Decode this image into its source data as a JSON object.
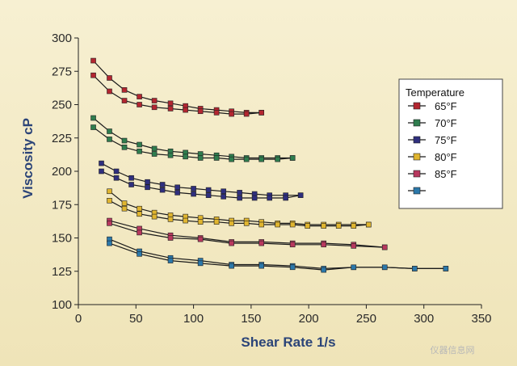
{
  "chart_data": {
    "type": "line",
    "title": "",
    "xlabel": "Shear Rate 1/s",
    "ylabel": "Viscosity cP",
    "xlim": [
      0,
      350
    ],
    "ylim": [
      100,
      300
    ],
    "xticks": [
      "0",
      "50",
      "100",
      "150",
      "200",
      "250",
      "300",
      "350"
    ],
    "yticks": [
      "100",
      "125",
      "150",
      "175",
      "200",
      "225",
      "250",
      "275",
      "300"
    ],
    "grid": false,
    "legend": {
      "title": "Temperature",
      "placement": "right",
      "entries": [
        {
          "label": "65°F",
          "color": "#b32630"
        },
        {
          "label": "70°F",
          "color": "#2f7d4e"
        },
        {
          "label": "75°F",
          "color": "#2f2f7e"
        },
        {
          "label": "80°F",
          "color": "#e0b52f"
        },
        {
          "label": "85°F",
          "color": "#b8385e"
        },
        {
          "label": "",
          "color": "#2b78aa"
        }
      ]
    },
    "series": [
      {
        "color": "#b32630",
        "curves": [
          [
            [
              13,
              283
            ],
            [
              27,
              270
            ],
            [
              40,
              261
            ],
            [
              53,
              256
            ],
            [
              66,
              253
            ],
            [
              80,
              251
            ],
            [
              93,
              249
            ],
            [
              106,
              247
            ],
            [
              120,
              246
            ],
            [
              133,
              245
            ],
            [
              146,
              244
            ],
            [
              159,
              244
            ]
          ],
          [
            [
              13,
              272
            ],
            [
              27,
              260
            ],
            [
              40,
              253
            ],
            [
              53,
              250
            ],
            [
              66,
              248
            ],
            [
              80,
              247
            ],
            [
              93,
              246
            ],
            [
              106,
              245
            ],
            [
              120,
              244
            ],
            [
              133,
              243
            ],
            [
              146,
              243
            ],
            [
              159,
              244
            ]
          ]
        ]
      },
      {
        "color": "#2f7d4e",
        "curves": [
          [
            [
              13,
              240
            ],
            [
              27,
              230
            ],
            [
              40,
              223
            ],
            [
              53,
              220
            ],
            [
              66,
              217
            ],
            [
              80,
              215
            ],
            [
              93,
              214
            ],
            [
              106,
              213
            ],
            [
              120,
              212
            ],
            [
              133,
              211
            ],
            [
              146,
              210
            ],
            [
              159,
              210
            ],
            [
              173,
              210
            ],
            [
              186,
              210
            ]
          ],
          [
            [
              13,
              233
            ],
            [
              27,
              224
            ],
            [
              40,
              218
            ],
            [
              53,
              215
            ],
            [
              66,
              213
            ],
            [
              80,
              212
            ],
            [
              93,
              211
            ],
            [
              106,
              210
            ],
            [
              120,
              210
            ],
            [
              133,
              209
            ],
            [
              146,
              209
            ],
            [
              159,
              209
            ],
            [
              173,
              209
            ],
            [
              186,
              210
            ]
          ]
        ]
      },
      {
        "color": "#2f2f7e",
        "curves": [
          [
            [
              20,
              206
            ],
            [
              33,
              200
            ],
            [
              46,
              195
            ],
            [
              60,
              192
            ],
            [
              73,
              190
            ],
            [
              86,
              188
            ],
            [
              100,
              187
            ],
            [
              113,
              186
            ],
            [
              126,
              185
            ],
            [
              140,
              184
            ],
            [
              153,
              183
            ],
            [
              166,
              182
            ],
            [
              180,
              182
            ],
            [
              193,
              182
            ]
          ],
          [
            [
              20,
              200
            ],
            [
              33,
              195
            ],
            [
              46,
              190
            ],
            [
              60,
              188
            ],
            [
              73,
              186
            ],
            [
              86,
              184
            ],
            [
              100,
              183
            ],
            [
              113,
              182
            ],
            [
              126,
              181
            ],
            [
              140,
              180
            ],
            [
              153,
              180
            ],
            [
              166,
              180
            ],
            [
              180,
              180
            ],
            [
              193,
              182
            ]
          ]
        ]
      },
      {
        "color": "#e0b52f",
        "curves": [
          [
            [
              27,
              185
            ],
            [
              40,
              176
            ],
            [
              53,
              172
            ],
            [
              66,
              169
            ],
            [
              80,
              167
            ],
            [
              93,
              166
            ],
            [
              106,
              165
            ],
            [
              120,
              164
            ],
            [
              133,
              163
            ],
            [
              146,
              163
            ],
            [
              159,
              162
            ],
            [
              173,
              161
            ],
            [
              186,
              161
            ],
            [
              199,
              160
            ],
            [
              213,
              160
            ],
            [
              226,
              160
            ],
            [
              239,
              160
            ],
            [
              252,
              160
            ]
          ],
          [
            [
              27,
              178
            ],
            [
              40,
              172
            ],
            [
              53,
              168
            ],
            [
              66,
              166
            ],
            [
              80,
              164
            ],
            [
              93,
              163
            ],
            [
              106,
              162
            ],
            [
              120,
              162
            ],
            [
              133,
              161
            ],
            [
              146,
              161
            ],
            [
              159,
              160
            ],
            [
              173,
              160
            ],
            [
              186,
              160
            ],
            [
              199,
              159
            ],
            [
              213,
              159
            ],
            [
              226,
              159
            ],
            [
              239,
              159
            ],
            [
              252,
              160
            ]
          ]
        ]
      },
      {
        "color": "#b8385e",
        "curves": [
          [
            [
              27,
              163
            ],
            [
              53,
              157
            ],
            [
              80,
              152
            ],
            [
              106,
              150
            ],
            [
              133,
              147
            ],
            [
              159,
              147
            ],
            [
              186,
              146
            ],
            [
              213,
              146
            ],
            [
              239,
              145
            ],
            [
              266,
              143
            ]
          ],
          [
            [
              27,
              161
            ],
            [
              53,
              154
            ],
            [
              80,
              150
            ],
            [
              106,
              149
            ],
            [
              133,
              146
            ],
            [
              159,
              146
            ],
            [
              186,
              145
            ],
            [
              213,
              145
            ],
            [
              239,
              144
            ],
            [
              266,
              143
            ]
          ]
        ]
      },
      {
        "color": "#2b78aa",
        "curves": [
          [
            [
              27,
              149
            ],
            [
              53,
              140
            ],
            [
              80,
              135
            ],
            [
              106,
              133
            ],
            [
              133,
              130
            ],
            [
              159,
              130
            ],
            [
              186,
              129
            ],
            [
              213,
              127
            ],
            [
              239,
              128
            ],
            [
              266,
              128
            ],
            [
              292,
              127
            ],
            [
              319,
              127
            ]
          ],
          [
            [
              27,
              146
            ],
            [
              53,
              138
            ],
            [
              80,
              133
            ],
            [
              106,
              131
            ],
            [
              133,
              129
            ],
            [
              159,
              129
            ],
            [
              186,
              128
            ],
            [
              213,
              126
            ],
            [
              239,
              128
            ],
            [
              266,
              128
            ],
            [
              292,
              127
            ],
            [
              319,
              127
            ]
          ]
        ]
      }
    ]
  },
  "watermark": "仪器信息网"
}
